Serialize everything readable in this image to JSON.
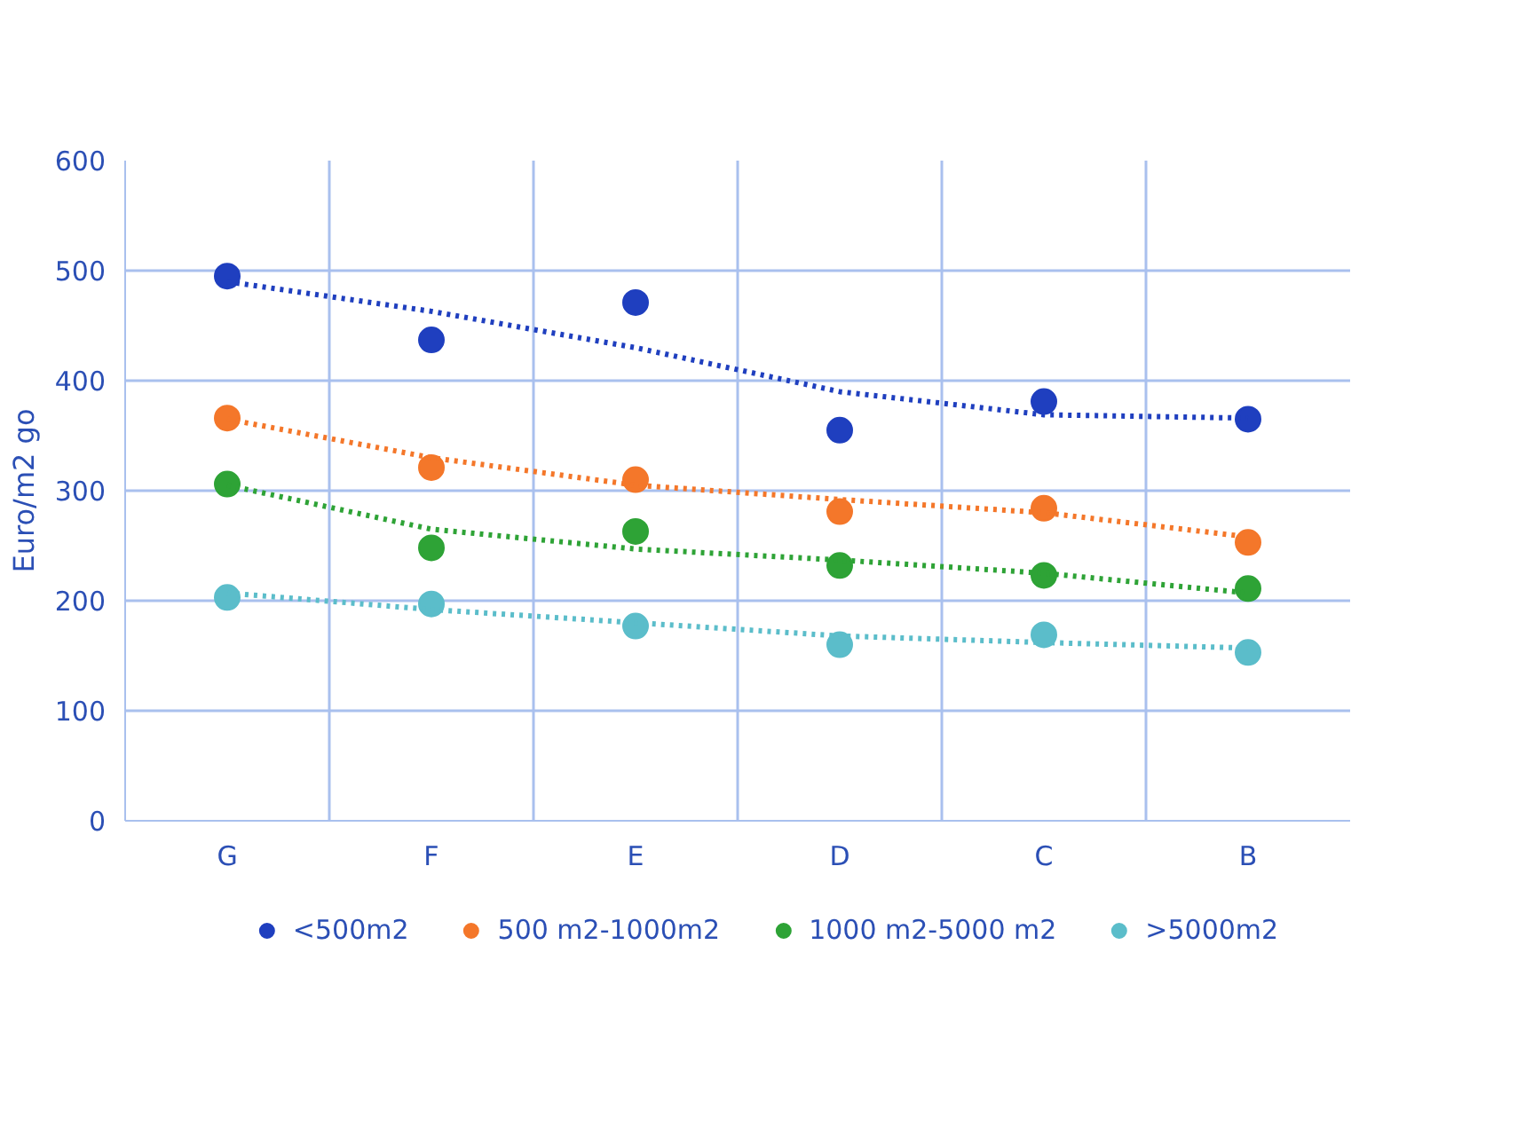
{
  "chart_data": {
    "type": "scatter",
    "ylabel": "Euro/m2 go",
    "categories": [
      "G",
      "F",
      "E",
      "D",
      "C",
      "B"
    ],
    "ylim": [
      0,
      600
    ],
    "yticks": [
      0,
      100,
      200,
      300,
      400,
      500,
      600
    ],
    "grid": true,
    "legend": "bottom",
    "marker": "circle",
    "series": [
      {
        "name": "<500m2",
        "color": "#1f3fbf",
        "values": [
          495,
          437,
          471,
          355,
          381,
          365
        ]
      },
      {
        "name": "500 m2-1000m2",
        "color": "#f4772a",
        "values": [
          366,
          321,
          310,
          281,
          284,
          253
        ]
      },
      {
        "name": "1000 m2-5000 m2",
        "color": "#2ea336",
        "values": [
          306,
          248,
          263,
          232,
          223,
          211
        ]
      },
      {
        "name": ">5000m2",
        "color": "#5bbdca",
        "values": [
          203,
          197,
          177,
          160,
          169,
          153
        ]
      },
      {
        "type": "line",
        "marker": "none",
        "line_style": "dotted",
        "color": "#1f3fbf",
        "values": [
          490,
          463,
          430,
          390,
          369,
          366
        ]
      },
      {
        "type": "line",
        "marker": "none",
        "line_style": "dotted",
        "color": "#f4772a",
        "values": [
          365,
          330,
          305,
          292,
          280,
          258
        ]
      },
      {
        "type": "line",
        "marker": "none",
        "line_style": "dotted",
        "color": "#2ea336",
        "values": [
          305,
          265,
          247,
          237,
          225,
          207
        ]
      },
      {
        "type": "line",
        "marker": "none",
        "line_style": "dotted",
        "color": "#5bbdca",
        "values": [
          207,
          192,
          180,
          168,
          162,
          157
        ]
      }
    ]
  }
}
